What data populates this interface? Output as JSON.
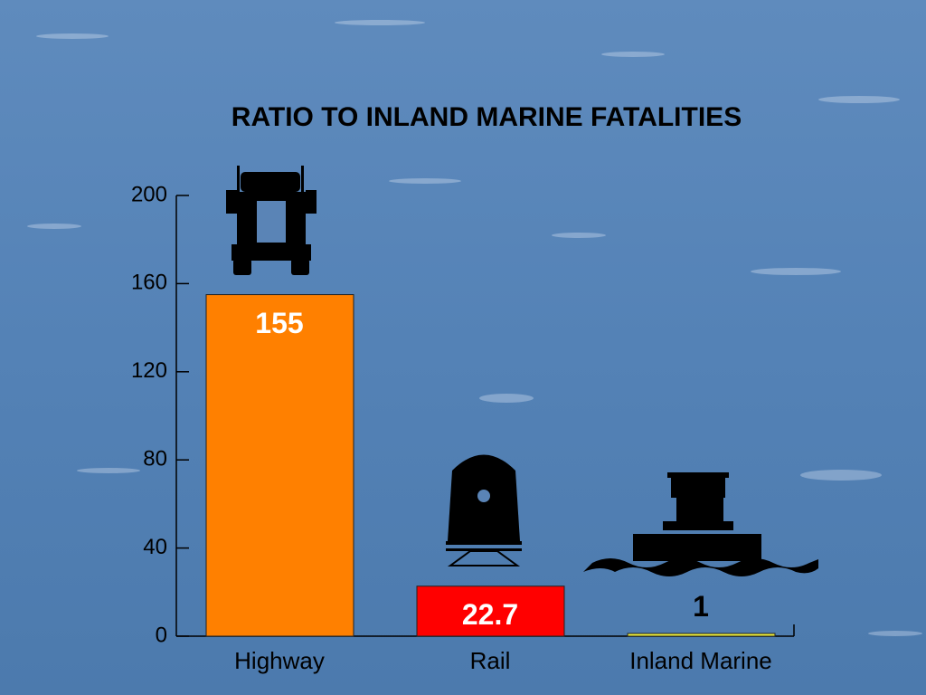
{
  "chart_data": {
    "type": "bar",
    "title": "RATIO TO INLAND MARINE FATALITIES",
    "categories": [
      "Highway",
      "Rail",
      "Inland Marine"
    ],
    "values": [
      155,
      22.7,
      1
    ],
    "colors": [
      "#ff8000",
      "#ff0000",
      "#f2f23a"
    ],
    "ylim": [
      0,
      200
    ],
    "yticks": [
      0,
      40,
      80,
      120,
      160,
      200
    ]
  }
}
